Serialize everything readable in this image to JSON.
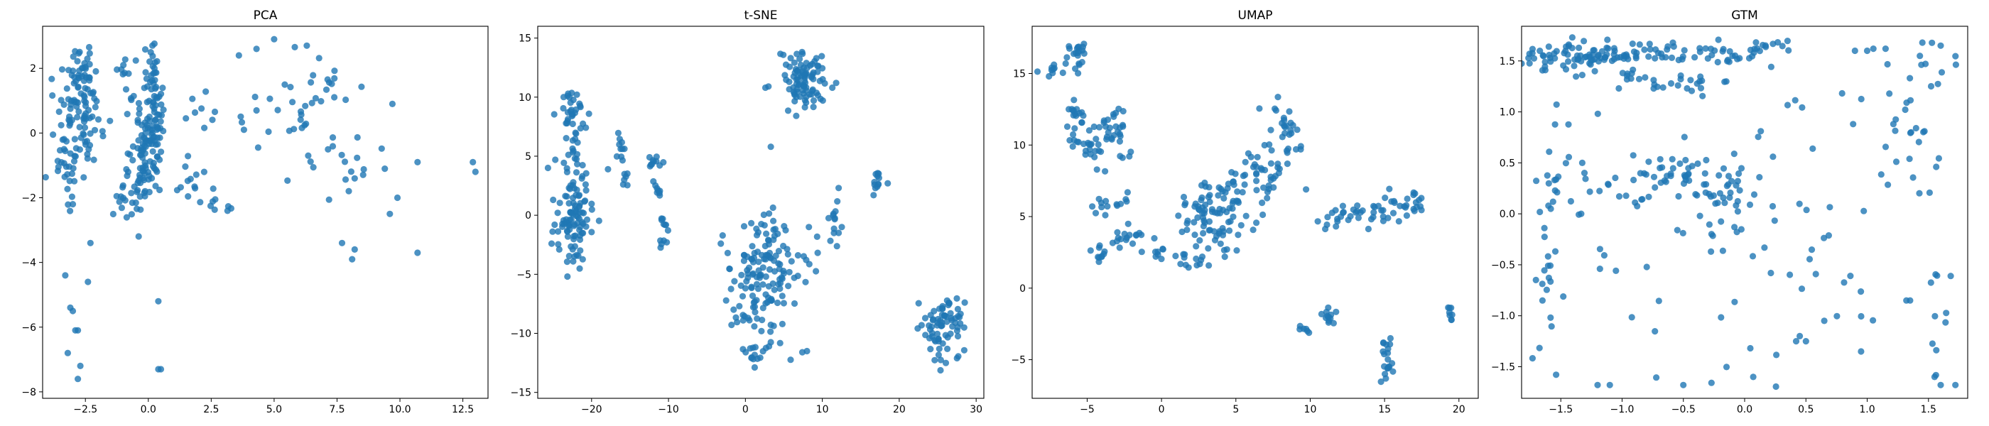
{
  "figure": {
    "background": "#ffffff"
  },
  "chart_data": [
    {
      "type": "scatter",
      "title": "PCA",
      "xlabel": "",
      "ylabel": "",
      "xlim": [
        -4.2,
        13.5
      ],
      "ylim": [
        -8.2,
        3.3
      ],
      "xticks": [
        -2.5,
        0.0,
        2.5,
        5.0,
        7.5,
        10.0,
        12.5
      ],
      "xtick_labels": [
        "−2.5",
        "0.0",
        "2.5",
        "5.0",
        "7.5",
        "10.0",
        "12.5"
      ],
      "yticks": [
        -8,
        -6,
        -4,
        -2,
        0,
        2
      ],
      "ytick_labels": [
        "−8",
        "−6",
        "−4",
        "−2",
        "0",
        "2"
      ],
      "grid": false,
      "marker_color": "#1f77b4",
      "series": [
        {
          "clusters": [
            {
              "cx": -2.7,
              "cy": 0.6,
              "sx": 0.45,
              "sy": 0.9,
              "n": 90
            },
            {
              "cx": -3.3,
              "cy": -0.6,
              "sx": 0.35,
              "sy": 0.7,
              "n": 25
            },
            {
              "cx": -2.6,
              "cy": 2.0,
              "sx": 0.25,
              "sy": 0.35,
              "n": 20
            },
            {
              "cx": 0.0,
              "cy": -0.3,
              "sx": 0.35,
              "sy": 0.9,
              "n": 110
            },
            {
              "cx": 0.2,
              "cy": 1.6,
              "sx": 0.2,
              "sy": 0.6,
              "n": 35
            },
            {
              "cx": -0.8,
              "cy": -2.0,
              "sx": 0.35,
              "sy": 0.45,
              "n": 25
            },
            {
              "cx": -0.9,
              "cy": 1.9,
              "sx": 0.2,
              "sy": 0.4,
              "n": 10
            },
            {
              "cx": 2.0,
              "cy": 0.6,
              "sx": 0.35,
              "sy": 0.3,
              "n": 8
            },
            {
              "cx": 1.7,
              "cy": -1.5,
              "sx": 0.3,
              "sy": 0.4,
              "n": 12
            },
            {
              "cx": 2.9,
              "cy": -2.2,
              "sx": 0.35,
              "sy": 0.25,
              "n": 8
            },
            {
              "cx": 5.6,
              "cy": 0.9,
              "sx": 0.9,
              "sy": 0.8,
              "n": 25
            },
            {
              "cx": 7.2,
              "cy": 1.5,
              "sx": 0.4,
              "sy": 0.4,
              "n": 10
            },
            {
              "cx": 8.4,
              "cy": -0.8,
              "sx": 0.6,
              "sy": 0.6,
              "n": 12
            },
            {
              "cx": 6.6,
              "cy": -1.0,
              "sx": 0.6,
              "sy": 0.7,
              "n": 8
            }
          ],
          "points": [
            [
              -3.3,
              -4.4
            ],
            [
              -3.1,
              -5.4
            ],
            [
              -3.0,
              -5.5
            ],
            [
              -2.9,
              -6.1
            ],
            [
              -2.8,
              -6.1
            ],
            [
              -2.7,
              -7.2
            ],
            [
              -2.8,
              -7.6
            ],
            [
              -3.2,
              -6.8
            ],
            [
              -2.4,
              -4.6
            ],
            [
              -3.0,
              -2.2
            ],
            [
              -2.3,
              -3.4
            ],
            [
              0.4,
              -5.2
            ],
            [
              0.4,
              -7.3
            ],
            [
              0.5,
              -7.3
            ],
            [
              12.9,
              -0.9
            ],
            [
              13.0,
              -1.2
            ],
            [
              10.7,
              -0.9
            ],
            [
              10.7,
              -3.7
            ],
            [
              9.9,
              -2.0
            ],
            [
              8.1,
              -3.9
            ],
            [
              8.2,
              -3.6
            ],
            [
              7.7,
              -3.4
            ],
            [
              9.6,
              -2.5
            ],
            [
              9.7,
              0.9
            ],
            [
              5.0,
              2.9
            ],
            [
              6.3,
              2.7
            ],
            [
              4.3,
              2.6
            ],
            [
              3.6,
              2.4
            ],
            [
              3.8,
              0.1
            ],
            [
              4.3,
              0.7
            ]
          ]
        }
      ]
    },
    {
      "type": "scatter",
      "title": "t-SNE",
      "xlabel": "",
      "ylabel": "",
      "xlim": [
        -27,
        31
      ],
      "ylim": [
        -15.5,
        16
      ],
      "xticks": [
        -20,
        -10,
        0,
        10,
        20,
        30
      ],
      "xtick_labels": [
        "−20",
        "−10",
        "0",
        "10",
        "20",
        "30"
      ],
      "yticks": [
        -15,
        -10,
        -5,
        0,
        5,
        10,
        15
      ],
      "yticks_fmt": "",
      "ytick_labels": [
        "−15",
        "−10",
        "−5",
        "0",
        "5",
        "10",
        "15"
      ],
      "grid": false,
      "marker_color": "#1f77b4",
      "series": [
        {
          "clusters": [
            {
              "cx": -22.2,
              "cy": 8.5,
              "sx": 1.0,
              "sy": 1.0,
              "n": 35
            },
            {
              "cx": -22.0,
              "cy": 0.8,
              "sx": 1.3,
              "sy": 2.3,
              "n": 110
            },
            {
              "cx": -16.2,
              "cy": 5.5,
              "sx": 0.4,
              "sy": 0.7,
              "n": 10
            },
            {
              "cx": -15.8,
              "cy": 2.8,
              "sx": 0.3,
              "sy": 0.6,
              "n": 6
            },
            {
              "cx": -12.0,
              "cy": 4.5,
              "sx": 0.4,
              "sy": 0.5,
              "n": 10
            },
            {
              "cx": -11.5,
              "cy": 2.2,
              "sx": 0.3,
              "sy": 0.5,
              "n": 8
            },
            {
              "cx": -10.6,
              "cy": -1.2,
              "sx": 0.4,
              "sy": 0.9,
              "n": 12
            },
            {
              "cx": 7.8,
              "cy": 11.3,
              "sx": 1.4,
              "sy": 1.5,
              "n": 90
            },
            {
              "cx": 2.5,
              "cy": -5.0,
              "sx": 2.4,
              "sy": 2.8,
              "n": 150
            },
            {
              "cx": 1.5,
              "cy": -11.6,
              "sx": 1.2,
              "sy": 0.5,
              "n": 15
            },
            {
              "cx": 11.7,
              "cy": -0.6,
              "sx": 0.4,
              "sy": 1.1,
              "n": 14
            },
            {
              "cx": 17.2,
              "cy": 3.0,
              "sx": 0.3,
              "sy": 0.6,
              "n": 12
            },
            {
              "cx": 25.8,
              "cy": -9.8,
              "sx": 1.4,
              "sy": 1.4,
              "n": 75
            }
          ],
          "points": [
            [
              -24.8,
              -0.8
            ],
            [
              -25.0,
              1.3
            ],
            [
              -25.2,
              -2.4
            ],
            [
              -24.2,
              -2.9
            ],
            [
              -3.2,
              -2.4
            ],
            [
              -2.3,
              -3.2
            ],
            [
              3.3,
              5.8
            ],
            [
              3.0,
              10.9
            ],
            [
              2.6,
              10.8
            ],
            [
              7.4,
              -11.6
            ],
            [
              8.0,
              -11.5
            ],
            [
              11.3,
              10.8
            ],
            [
              11.8,
              11.2
            ],
            [
              18.5,
              2.7
            ],
            [
              6.0,
              -3.9
            ]
          ]
        }
      ]
    },
    {
      "type": "scatter",
      "title": "UMAP",
      "xlabel": "",
      "ylabel": "",
      "xlim": [
        -8.7,
        21.3
      ],
      "ylim": [
        -7.7,
        18.3
      ],
      "xticks": [
        -5,
        0,
        5,
        10,
        15,
        20
      ],
      "xtick_labels": [
        "−5",
        "0",
        "5",
        "10",
        "15",
        "20"
      ],
      "yticks": [
        -5,
        0,
        5,
        10,
        15
      ],
      "ytick_labels": [
        "−5",
        "0",
        "5",
        "10",
        "15"
      ],
      "grid": false,
      "marker_color": "#1f77b4",
      "series": [
        {
          "clusters": [
            {
              "cx": -5.7,
              "cy": 16.3,
              "sx": 0.35,
              "sy": 0.6,
              "n": 20
            },
            {
              "cx": -7.0,
              "cy": 15.2,
              "sx": 0.6,
              "sy": 0.2,
              "n": 10
            },
            {
              "cx": -5.8,
              "cy": 12.2,
              "sx": 0.3,
              "sy": 0.7,
              "n": 15
            },
            {
              "cx": -4.5,
              "cy": 10.0,
              "sx": 0.9,
              "sy": 0.9,
              "n": 40
            },
            {
              "cx": -3.0,
              "cy": 11.3,
              "sx": 0.4,
              "sy": 0.6,
              "n": 15
            },
            {
              "cx": -4.0,
              "cy": 5.6,
              "sx": 0.5,
              "sy": 0.3,
              "n": 8
            },
            {
              "cx": -2.6,
              "cy": 6.0,
              "sx": 0.4,
              "sy": 0.3,
              "n": 6
            },
            {
              "cx": -4.3,
              "cy": 2.5,
              "sx": 0.3,
              "sy": 0.4,
              "n": 10
            },
            {
              "cx": -2.9,
              "cy": 3.5,
              "sx": 0.6,
              "sy": 0.5,
              "n": 10
            },
            {
              "cx": -1.3,
              "cy": 3.3,
              "sx": 0.6,
              "sy": 0.5,
              "n": 8
            },
            {
              "cx": 0.3,
              "cy": 2.6,
              "sx": 0.7,
              "sy": 0.2,
              "n": 8
            },
            {
              "cx": 2.0,
              "cy": 1.8,
              "sx": 0.7,
              "sy": 0.3,
              "n": 10
            },
            {
              "cx": 3.6,
              "cy": 4.8,
              "sx": 1.1,
              "sy": 1.4,
              "n": 80
            },
            {
              "cx": 4.5,
              "cy": 7.0,
              "sx": 0.6,
              "sy": 0.6,
              "n": 15
            },
            {
              "cx": 6.5,
              "cy": 8.2,
              "sx": 0.7,
              "sy": 1.1,
              "n": 30
            },
            {
              "cx": 8.2,
              "cy": 10.5,
              "sx": 0.6,
              "sy": 1.4,
              "n": 35
            },
            {
              "cx": 12.0,
              "cy": 5.0,
              "sx": 0.8,
              "sy": 0.4,
              "n": 20
            },
            {
              "cx": 15.2,
              "cy": 5.3,
              "sx": 1.3,
              "sy": 0.5,
              "n": 30
            },
            {
              "cx": 17.0,
              "cy": 6.4,
              "sx": 0.4,
              "sy": 0.3,
              "n": 8
            },
            {
              "cx": 9.5,
              "cy": -2.8,
              "sx": 0.3,
              "sy": 0.15,
              "n": 6
            },
            {
              "cx": 11.3,
              "cy": -2.0,
              "sx": 0.4,
              "sy": 0.4,
              "n": 12
            },
            {
              "cx": 15.2,
              "cy": -5.0,
              "sx": 0.25,
              "sy": 0.8,
              "n": 20
            },
            {
              "cx": 19.5,
              "cy": -1.6,
              "sx": 0.15,
              "sy": 0.3,
              "n": 8
            }
          ],
          "points": []
        }
      ]
    },
    {
      "type": "scatter",
      "title": "GTM",
      "xlabel": "",
      "ylabel": "",
      "xlim": [
        -1.82,
        1.82
      ],
      "ylim": [
        -1.81,
        1.84
      ],
      "xticks": [
        -1.5,
        -1.0,
        -0.5,
        0.0,
        0.5,
        1.0,
        1.5
      ],
      "xtick_labels": [
        "−1.5",
        "−1.0",
        "−0.5",
        "0.0",
        "0.5",
        "1.0",
        "1.5"
      ],
      "yticks": [
        -1.5,
        -1.0,
        -0.5,
        0.0,
        0.5,
        1.0,
        1.5
      ],
      "ytick_labels": [
        "−1.5",
        "−1.0",
        "−0.5",
        "0.0",
        "0.5",
        "1.0",
        "1.5"
      ],
      "grid": false,
      "marker_color": "#1f77b4",
      "series": [
        {
          "clusters": [
            {
              "cx": -1.3,
              "cy": 1.57,
              "sx": 0.25,
              "sy": 0.06,
              "n": 80
            },
            {
              "cx": -0.65,
              "cy": 1.6,
              "sx": 0.2,
              "sy": 0.06,
              "n": 25
            },
            {
              "cx": -0.1,
              "cy": 1.55,
              "sx": 0.15,
              "sy": 0.07,
              "n": 25
            },
            {
              "cx": 0.25,
              "cy": 1.65,
              "sx": 0.1,
              "sy": 0.03,
              "n": 8
            },
            {
              "cx": -0.5,
              "cy": 1.28,
              "sx": 0.25,
              "sy": 0.06,
              "n": 25
            },
            {
              "cx": -1.3,
              "cy": 1.35,
              "sx": 0.25,
              "sy": 0.05,
              "n": 10
            },
            {
              "cx": -0.45,
              "cy": 0.38,
              "sx": 0.22,
              "sy": 0.12,
              "n": 45
            },
            {
              "cx": -0.15,
              "cy": 0.15,
              "sx": 0.1,
              "sy": 0.2,
              "n": 25
            },
            {
              "cx": -1.2,
              "cy": 0.35,
              "sx": 0.25,
              "sy": 0.15,
              "n": 20
            },
            {
              "cx": 1.25,
              "cy": 0.65,
              "sx": 0.12,
              "sy": 0.2,
              "n": 15
            },
            {
              "cx": 1.45,
              "cy": 1.45,
              "sx": 0.15,
              "sy": 0.2,
              "n": 12
            },
            {
              "cx": -1.6,
              "cy": -0.5,
              "sx": 0.05,
              "sy": 0.6,
              "n": 25
            },
            {
              "cx": 0.0,
              "cy": -0.3,
              "sx": 1.0,
              "sy": 0.8,
              "n": 70
            },
            {
              "cx": 0.5,
              "cy": 0.9,
              "sx": 0.3,
              "sy": 0.3,
              "n": 12
            },
            {
              "cx": 1.6,
              "cy": -0.5,
              "sx": 0.05,
              "sy": 0.7,
              "n": 12
            }
          ],
          "points": [
            [
              1.0,
              1.6
            ],
            [
              1.05,
              1.62
            ],
            [
              1.15,
              1.62
            ],
            [
              0.9,
              1.6
            ],
            [
              1.45,
              1.68
            ],
            [
              1.6,
              1.65
            ],
            [
              1.55,
              -1.6
            ],
            [
              1.6,
              -1.68
            ],
            [
              1.72,
              -1.68
            ],
            [
              0.07,
              -1.6
            ],
            [
              -0.5,
              -1.68
            ],
            [
              -1.2,
              -1.68
            ],
            [
              -1.1,
              -1.68
            ],
            [
              0.5,
              -1.25
            ],
            [
              0.45,
              -1.2
            ],
            [
              0.42,
              -1.25
            ],
            [
              0.65,
              -1.05
            ],
            [
              0.95,
              -1.35
            ],
            [
              1.35,
              -0.85
            ],
            [
              1.32,
              -0.85
            ]
          ]
        }
      ]
    }
  ]
}
